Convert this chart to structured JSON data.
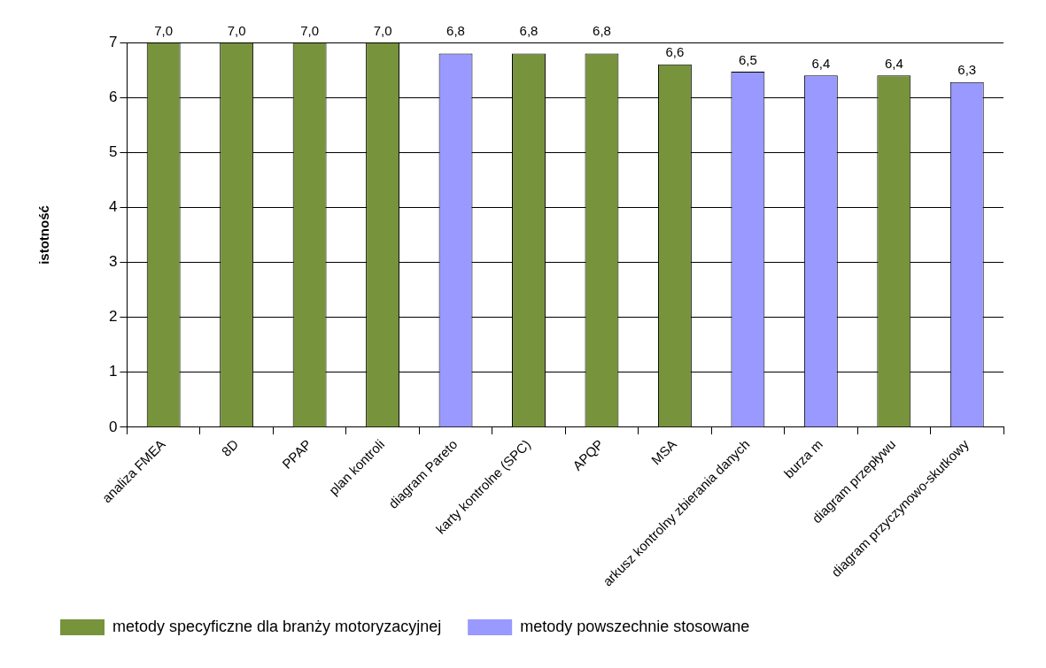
{
  "chart_data": {
    "type": "bar",
    "ylabel": "istotność",
    "categories": [
      "analiza FMEA",
      "8D",
      "PPAP",
      "plan kontroli",
      "diagram Pareto",
      "karty kontrolne (SPC)",
      "APQP",
      "MSA",
      "arkusz kontrolny zbierania danych",
      "burza m",
      "diagram przepływu",
      "diagram przyczynowo-skutkowy"
    ],
    "series": [
      {
        "name": "metody specyficzne dla branży motoryzacyjnej",
        "color": "#77933c",
        "values": [
          7.0,
          7.0,
          7.0,
          7.0,
          null,
          6.8,
          6.8,
          6.6,
          null,
          null,
          6.4,
          null
        ],
        "value_labels": [
          "7,0",
          "7,0",
          "7,0",
          "7,0",
          null,
          "6,8",
          "6,8",
          "6,6",
          null,
          null,
          "6,4",
          null
        ]
      },
      {
        "name": "metody powszechnie stosowane",
        "color": "#9999ff",
        "values": [
          null,
          null,
          null,
          null,
          6.8,
          null,
          null,
          null,
          6.47,
          6.4,
          null,
          6.28
        ],
        "value_labels": [
          null,
          null,
          null,
          null,
          "6,8",
          null,
          null,
          null,
          "6,5",
          "6,4",
          null,
          "6,3"
        ]
      }
    ],
    "ylim": [
      0,
      7
    ],
    "yticks": [
      0,
      1,
      2,
      3,
      4,
      5,
      6,
      7
    ],
    "grid": "y",
    "legend": "bottom left"
  }
}
